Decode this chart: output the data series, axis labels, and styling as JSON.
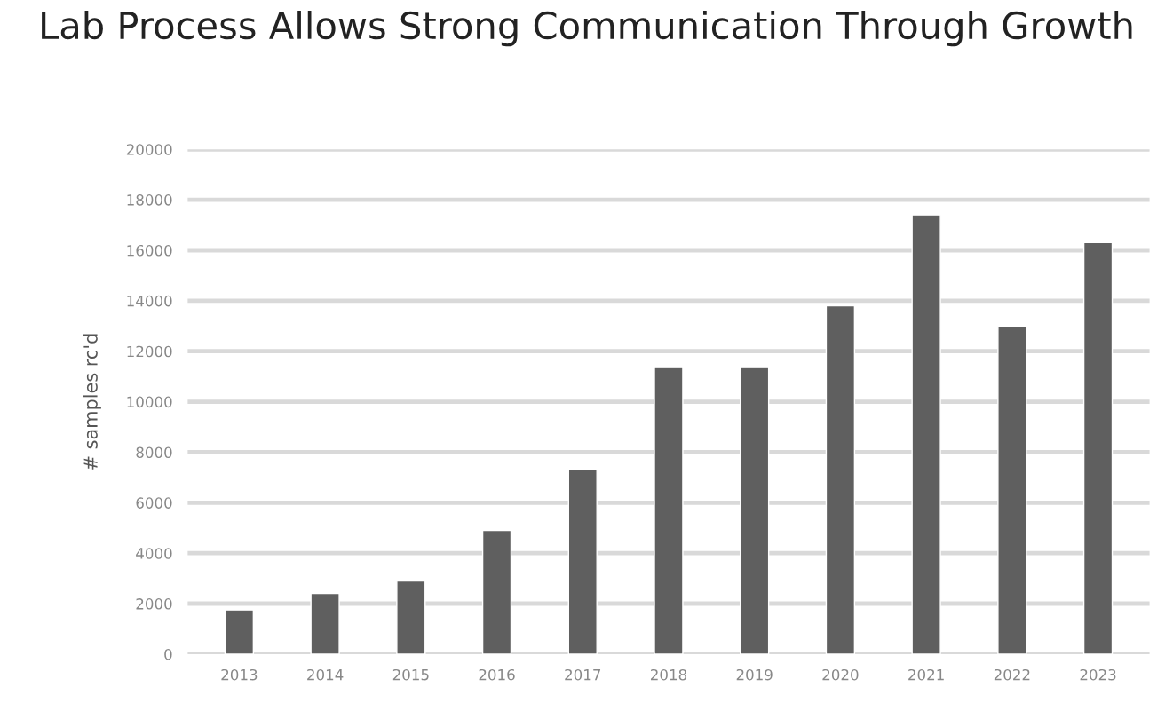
{
  "chart_data": {
    "type": "bar",
    "title": "Lab Process Allows Strong Communication Through Growth",
    "ylabel": "# samples rc'd",
    "categories": [
      "2013",
      "2014",
      "2015",
      "2016",
      "2017",
      "2018",
      "2019",
      "2020",
      "2021",
      "2022",
      "2023"
    ],
    "values": [
      1750,
      2400,
      2900,
      4900,
      7300,
      11350,
      11350,
      13800,
      17400,
      13000,
      16300
    ],
    "color": "#5f5f5f",
    "ylim": [
      0,
      20000
    ],
    "yticks": [
      0,
      2000,
      4000,
      6000,
      8000,
      10000,
      12000,
      14000,
      16000,
      18000,
      20000
    ],
    "grid": "y"
  }
}
